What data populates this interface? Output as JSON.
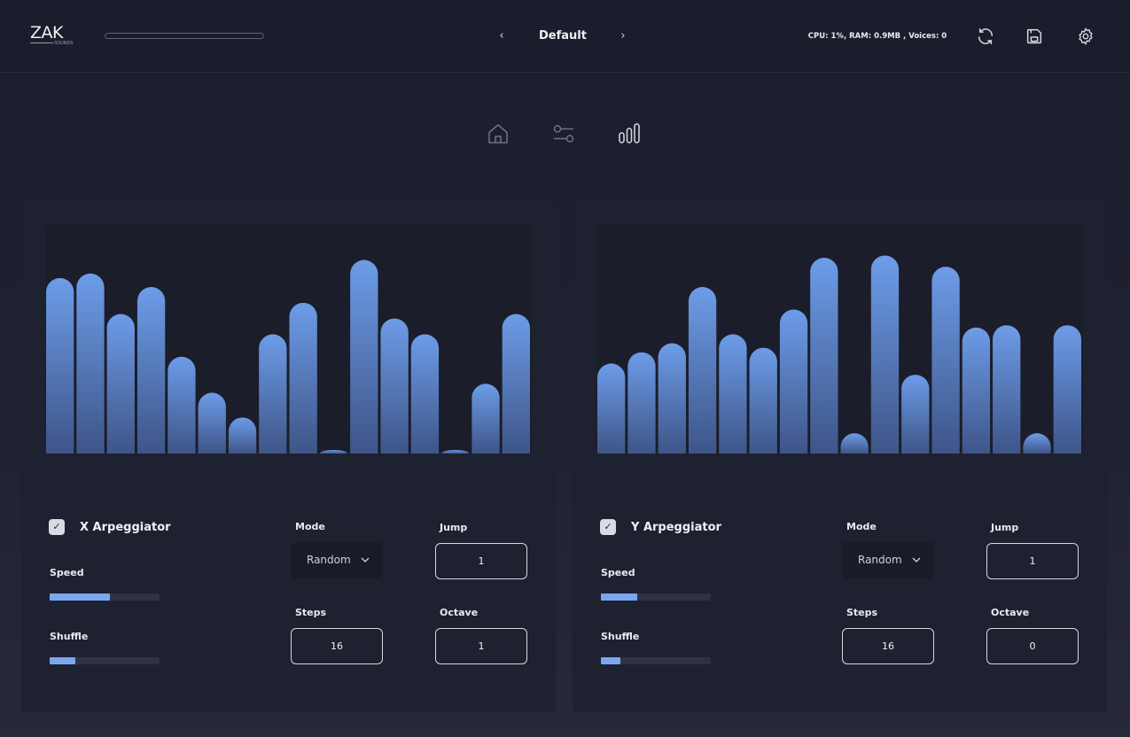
{
  "header": {
    "logo_text": "ZAK",
    "logo_sub": "SOUNDS",
    "preset_name": "Default",
    "prev_glyph": "‹",
    "next_glyph": "›",
    "sysinfo": "CPU: 1%, RAM: 0.9MB , Voices: 0",
    "progress": 0
  },
  "icons": {
    "refresh": "refresh-icon",
    "save": "save-icon",
    "settings": "gear-icon",
    "home": "home-icon",
    "sliders": "sliders-icon",
    "bars": "bar-chart-icon"
  },
  "colors": {
    "accent": "#7ba6f0",
    "bar_top": "#6d9ce8",
    "bar_bottom": "#3e5588",
    "panel": "#1e2130",
    "graph_bg": "#1b1d2a"
  },
  "x_arp": {
    "enabled": true,
    "checkmark": "✓",
    "title": "X Arpeggiator",
    "speed_label": "Speed",
    "speed": 0.55,
    "shuffle_label": "Shuffle",
    "shuffle": 0.23,
    "mode_label": "Mode",
    "mode_value": "Random",
    "jump_label": "Jump",
    "jump_value": "1",
    "steps_label": "Steps",
    "steps_value": "16",
    "octave_label": "Octave",
    "octave_value": "1",
    "bars": [
      0.78,
      0.8,
      0.62,
      0.74,
      0.43,
      0.27,
      0.16,
      0.53,
      0.67,
      0.0,
      0.86,
      0.6,
      0.53,
      0.0,
      0.31,
      0.62
    ]
  },
  "y_arp": {
    "enabled": true,
    "checkmark": "✓",
    "title": "Y Arpeggiator",
    "speed_label": "Speed",
    "speed": 0.33,
    "shuffle_label": "Shuffle",
    "shuffle": 0.18,
    "mode_label": "Mode",
    "mode_value": "Random",
    "jump_label": "Jump",
    "jump_value": "1",
    "steps_label": "Steps",
    "steps_value": "16",
    "octave_label": "Octave",
    "octave_value": "0",
    "bars": [
      0.4,
      0.45,
      0.49,
      0.74,
      0.53,
      0.47,
      0.64,
      0.87,
      0.09,
      0.88,
      0.35,
      0.83,
      0.56,
      0.57,
      0.09,
      0.57
    ]
  }
}
